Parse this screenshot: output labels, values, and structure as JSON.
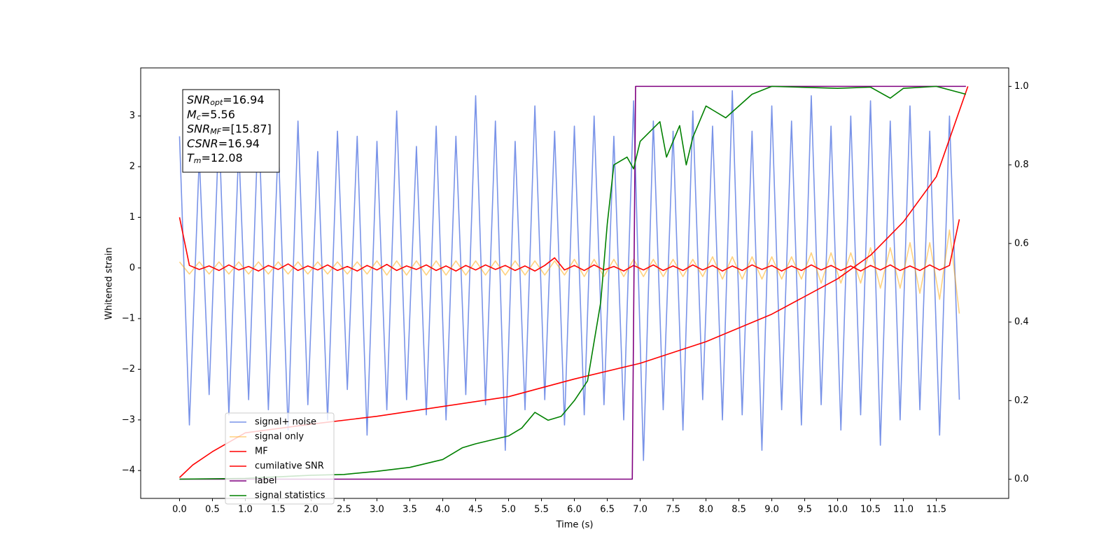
{
  "chart_data": {
    "type": "line",
    "xlabel": "Time (s)",
    "ylabel": "Whitened strain",
    "xlim": [
      -0.59,
      12.6
    ],
    "ylim": [
      -4.55,
      3.95
    ],
    "y2lim": [
      -0.049,
      1.047
    ],
    "xticks": [
      {
        "value": 0,
        "label": "0.0"
      },
      {
        "value": 0.5,
        "label": "0.5"
      },
      {
        "value": 1,
        "label": "1.0"
      },
      {
        "value": 1.5,
        "label": "1.5"
      },
      {
        "value": 2,
        "label": "2.0"
      },
      {
        "value": 2.5,
        "label": "2.5"
      },
      {
        "value": 3,
        "label": "3.0"
      },
      {
        "value": 3.5,
        "label": "3.5"
      },
      {
        "value": 4,
        "label": "4.0"
      },
      {
        "value": 4.5,
        "label": "4.5"
      },
      {
        "value": 5,
        "label": "5.0"
      },
      {
        "value": 5.5,
        "label": "5.5"
      },
      {
        "value": 6,
        "label": "6.0"
      },
      {
        "value": 6.5,
        "label": "6.5"
      },
      {
        "value": 7,
        "label": "7.0"
      },
      {
        "value": 7.5,
        "label": "7.5"
      },
      {
        "value": 8,
        "label": "8.0"
      },
      {
        "value": 8.5,
        "label": "8.5"
      },
      {
        "value": 9,
        "label": "9.0"
      },
      {
        "value": 9.5,
        "label": "9.5"
      },
      {
        "value": 10,
        "label": "10.0"
      },
      {
        "value": 10.5,
        "label": "10.5"
      },
      {
        "value": 11,
        "label": "11.0"
      },
      {
        "value": 11.5,
        "label": "11.5"
      }
    ],
    "yticks": [
      {
        "value": -4,
        "label": "−4"
      },
      {
        "value": -3,
        "label": "−3"
      },
      {
        "value": -2,
        "label": "−2"
      },
      {
        "value": -1,
        "label": "−1"
      },
      0,
      1,
      2,
      3
    ],
    "y2ticks": [
      {
        "value": 0,
        "label": "0.0"
      },
      {
        "value": 0.2,
        "label": "0.2"
      },
      {
        "value": 0.4,
        "label": "0.4"
      },
      {
        "value": 0.6,
        "label": "0.6"
      },
      {
        "value": 0.8,
        "label": "0.8"
      },
      {
        "value": 1,
        "label": "1.0"
      }
    ],
    "legend": "lower left",
    "x": [
      0,
      0.15,
      0.3,
      0.45,
      0.6,
      0.75,
      0.9,
      1.05,
      1.2,
      1.35,
      1.5,
      1.65,
      1.8,
      1.95,
      2.1,
      2.25,
      2.4,
      2.55,
      2.7,
      2.85,
      3,
      3.15,
      3.3,
      3.45,
      3.6,
      3.75,
      3.9,
      4.05,
      4.2,
      4.35,
      4.5,
      4.65,
      4.8,
      4.95,
      5.1,
      5.25,
      5.4,
      5.55,
      5.7,
      5.85,
      6,
      6.15,
      6.3,
      6.45,
      6.6,
      6.75,
      6.9,
      7.05,
      7.2,
      7.35,
      7.5,
      7.65,
      7.8,
      7.95,
      8.1,
      8.25,
      8.4,
      8.55,
      8.7,
      8.85,
      9,
      9.15,
      9.3,
      9.45,
      9.6,
      9.75,
      9.9,
      10.05,
      10.2,
      10.35,
      10.5,
      10.65,
      10.8,
      10.95,
      11.1,
      11.25,
      11.4,
      11.55,
      11.7,
      11.85
    ],
    "series": [
      {
        "name": "signal+ noise",
        "color": "#7993e8",
        "values": [
          2.6,
          -3.1,
          2.2,
          -2.5,
          2.8,
          -2.9,
          2.4,
          -2.6,
          3.0,
          -2.8,
          2.5,
          -3.2,
          2.9,
          -2.7,
          2.3,
          -3.0,
          2.7,
          -2.4,
          2.6,
          -3.3,
          2.5,
          -2.8,
          3.1,
          -2.6,
          2.4,
          -2.9,
          2.8,
          -3.0,
          2.6,
          -2.5,
          3.4,
          -2.7,
          2.9,
          -3.6,
          2.5,
          -2.8,
          3.2,
          -2.6,
          2.7,
          -3.1,
          2.8,
          -2.9,
          3.0,
          -2.7,
          2.6,
          -3.0,
          3.3,
          -3.8,
          2.9,
          -2.8,
          2.7,
          -3.2,
          3.1,
          -2.6,
          2.8,
          -3.0,
          3.5,
          -2.9,
          2.7,
          -3.6,
          3.2,
          -2.8,
          2.9,
          -3.1,
          3.4,
          -2.7,
          2.8,
          -3.2,
          3.0,
          -2.9,
          3.3,
          -3.5,
          2.9,
          -3.0,
          3.2,
          -2.8,
          2.7,
          -3.3,
          3.0,
          -2.6
        ]
      },
      {
        "name": "signal only",
        "color": "orange",
        "alpha": 0.5,
        "values": [
          0.12,
          -0.12,
          0.12,
          -0.12,
          0.12,
          -0.12,
          0.12,
          -0.12,
          0.12,
          -0.12,
          0.12,
          -0.12,
          0.12,
          -0.12,
          0.12,
          -0.12,
          0.12,
          -0.12,
          0.12,
          -0.12,
          0.14,
          -0.14,
          0.14,
          -0.14,
          0.14,
          -0.14,
          0.14,
          -0.14,
          0.14,
          -0.14,
          0.14,
          -0.14,
          0.14,
          -0.14,
          0.14,
          -0.14,
          0.14,
          -0.14,
          0.14,
          -0.14,
          0.17,
          -0.17,
          0.17,
          -0.17,
          0.17,
          -0.17,
          0.17,
          -0.17,
          0.17,
          -0.17,
          0.17,
          -0.17,
          0.17,
          -0.17,
          0.22,
          -0.22,
          0.22,
          -0.22,
          0.22,
          -0.22,
          0.22,
          -0.22,
          0.22,
          -0.22,
          0.3,
          -0.3,
          0.3,
          -0.3,
          0.3,
          -0.3,
          0.4,
          -0.4,
          0.4,
          -0.4,
          0.5,
          -0.5,
          0.5,
          -0.62,
          0.75,
          -0.9
        ]
      },
      {
        "name": "MF",
        "color": "red",
        "values": [
          1.0,
          0.05,
          -0.03,
          0.04,
          -0.05,
          0.06,
          -0.04,
          0.03,
          -0.06,
          0.05,
          -0.03,
          0.08,
          -0.05,
          0.04,
          -0.04,
          0.06,
          -0.05,
          0.03,
          -0.06,
          0.05,
          -0.04,
          0.07,
          -0.05,
          0.04,
          -0.03,
          0.06,
          -0.05,
          0.04,
          -0.06,
          0.05,
          -0.04,
          0.06,
          -0.03,
          0.05,
          -0.05,
          0.04,
          -0.06,
          0.05,
          0.2,
          -0.04,
          0.05,
          -0.05,
          0.06,
          -0.04,
          0.03,
          -0.06,
          0.05,
          -0.04,
          0.06,
          -0.05,
          0.04,
          -0.05,
          0.06,
          -0.04,
          0.05,
          -0.06,
          0.04,
          -0.05,
          0.06,
          -0.03,
          0.05,
          -0.06,
          0.04,
          -0.05,
          0.06,
          -0.04,
          0.05,
          -0.05,
          0.04,
          -0.06,
          0.05,
          -0.04,
          0.06,
          -0.05,
          0.04,
          -0.05,
          0.06,
          -0.04,
          0.05,
          0.96
        ]
      },
      {
        "name": "cumilative SNR",
        "color": "red",
        "axis": "y2",
        "x": [
          0,
          0.2,
          0.5,
          1,
          2,
          3,
          4,
          5,
          6,
          7,
          8,
          9,
          10,
          10.5,
          11,
          11.5,
          11.98
        ],
        "values": [
          0.004,
          0.036,
          0.07,
          0.118,
          0.14,
          0.16,
          0.185,
          0.21,
          0.255,
          0.295,
          0.35,
          0.42,
          0.51,
          0.57,
          0.655,
          0.77,
          1.0
        ]
      },
      {
        "name": "label",
        "color": "purple",
        "axis": "y2",
        "x": [
          0,
          6.88,
          6.93,
          11.95
        ],
        "values": [
          0,
          0,
          1,
          1
        ]
      },
      {
        "name": "signal statistics",
        "color": "green",
        "axis": "y2",
        "x": [
          0,
          1,
          2,
          2.5,
          3,
          3.5,
          4,
          4.3,
          4.5,
          5,
          5.2,
          5.4,
          5.6,
          5.8,
          6,
          6.2,
          6.4,
          6.5,
          6.6,
          6.8,
          6.9,
          7,
          7.3,
          7.4,
          7.6,
          7.7,
          7.8,
          8,
          8.3,
          8.7,
          9,
          10,
          10.5,
          10.8,
          11,
          11.5,
          11.95
        ],
        "values": [
          0,
          0.002,
          0.01,
          0.012,
          0.02,
          0.03,
          0.05,
          0.08,
          0.09,
          0.11,
          0.13,
          0.17,
          0.15,
          0.16,
          0.2,
          0.25,
          0.45,
          0.65,
          0.8,
          0.82,
          0.79,
          0.86,
          0.91,
          0.82,
          0.9,
          0.8,
          0.87,
          0.95,
          0.92,
          0.98,
          1.0,
          0.995,
          0.998,
          0.97,
          0.995,
          1.0,
          0.98
        ]
      }
    ],
    "annotations": [
      {
        "main": "SNR",
        "sub": "opt",
        "rest": "=16.94"
      },
      {
        "main": "M",
        "sub": "c",
        "rest": "=5.56"
      },
      {
        "main": "SNR",
        "sub": "MF",
        "rest": "=[15.87]"
      },
      {
        "main": "CSNR",
        "rest": "=16.94"
      },
      {
        "main": "T",
        "sub": "m",
        "rest": "=12.08"
      }
    ]
  }
}
